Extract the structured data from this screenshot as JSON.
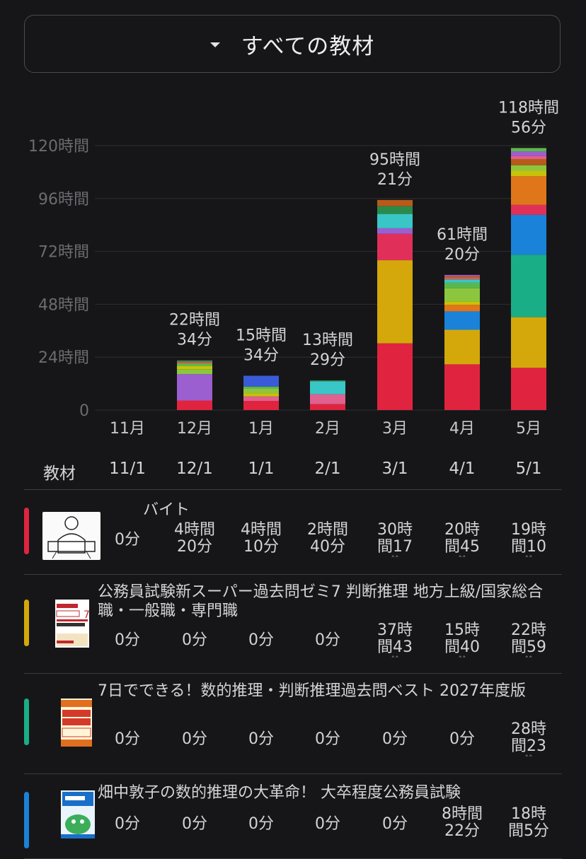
{
  "selector": {
    "label": "すべての教材"
  },
  "chart_data": {
    "type": "bar",
    "stacked": true,
    "categories": [
      "11月",
      "12月",
      "1月",
      "2月",
      "3月",
      "4月",
      "5月"
    ],
    "y_ticks": [
      "0",
      "24時間",
      "48時間",
      "72時間",
      "96時間",
      "120時間"
    ],
    "ylim": [
      0,
      120
    ],
    "grid": true,
    "totals_label": [
      [
        "",
        ""
      ],
      [
        "22時間",
        "34分"
      ],
      [
        "15時間",
        "34分"
      ],
      [
        "13時間",
        "29分"
      ],
      [
        "95時間",
        "21分"
      ],
      [
        "61時間",
        "20分"
      ],
      [
        "118時間",
        "56分"
      ]
    ],
    "totals_hours": [
      0,
      22.57,
      15.57,
      13.48,
      95.35,
      61.33,
      118.93
    ],
    "segments": [
      [],
      [
        {
          "h": 4.33,
          "c": "#e0243f"
        },
        {
          "h": 12.0,
          "c": "#9b5fd0"
        },
        {
          "h": 2.2,
          "c": "#8cc63f"
        },
        {
          "h": 1.5,
          "c": "#c8c20a"
        },
        {
          "h": 1.2,
          "c": "#5ab84a"
        },
        {
          "h": 0.8,
          "c": "#d65a5a"
        },
        {
          "h": 0.54,
          "c": "#2a8a4a"
        }
      ],
      [
        {
          "h": 4.17,
          "c": "#e0243f"
        },
        {
          "h": 2.0,
          "c": "#e06090"
        },
        {
          "h": 1.5,
          "c": "#c8c20a"
        },
        {
          "h": 2.2,
          "c": "#8cc63f"
        },
        {
          "h": 0.8,
          "c": "#5ab84a"
        },
        {
          "h": 4.9,
          "c": "#3a5ad8"
        }
      ],
      [
        {
          "h": 2.67,
          "c": "#e0243f"
        },
        {
          "h": 4.5,
          "c": "#e06090"
        },
        {
          "h": 5.9,
          "c": "#3ac6c6"
        },
        {
          "h": 0.41,
          "c": "#2a8a4a"
        }
      ],
      [
        {
          "h": 30.28,
          "c": "#e0243f"
        },
        {
          "h": 37.72,
          "c": "#d4a80a"
        },
        {
          "h": 12.0,
          "c": "#e0305a"
        },
        {
          "h": 2.5,
          "c": "#9b5fd0"
        },
        {
          "h": 6.5,
          "c": "#3ac6c6"
        },
        {
          "h": 3.5,
          "c": "#2a8a4a"
        },
        {
          "h": 2.85,
          "c": "#b85a1a"
        }
      ],
      [
        {
          "h": 20.75,
          "c": "#e0243f"
        },
        {
          "h": 15.67,
          "c": "#d4a80a"
        },
        {
          "h": 8.37,
          "c": "#1a82d8"
        },
        {
          "h": 3.0,
          "c": "#e0761a"
        },
        {
          "h": 1.5,
          "c": "#c8c20a"
        },
        {
          "h": 6.0,
          "c": "#8cc63f"
        },
        {
          "h": 2.5,
          "c": "#5ab84a"
        },
        {
          "h": 1.5,
          "c": "#3ac6c6"
        },
        {
          "h": 1.0,
          "c": "#d65a5a"
        },
        {
          "h": 0.54,
          "c": "#b85a1a"
        },
        {
          "h": 0.5,
          "c": "#9b5fd0"
        }
      ],
      [
        {
          "h": 19.17,
          "c": "#e0243f"
        },
        {
          "h": 22.98,
          "c": "#d4a80a"
        },
        {
          "h": 28.38,
          "c": "#1aae86"
        },
        {
          "h": 18.08,
          "c": "#1a82d8"
        },
        {
          "h": 4.5,
          "c": "#e0305a"
        },
        {
          "h": 13.0,
          "c": "#e0761a"
        },
        {
          "h": 2.5,
          "c": "#c8c20a"
        },
        {
          "h": 2.5,
          "c": "#8cc63f"
        },
        {
          "h": 2.8,
          "c": "#b85a1a"
        },
        {
          "h": 1.5,
          "c": "#e06090"
        },
        {
          "h": 2.0,
          "c": "#9b5fd0"
        },
        {
          "h": 1.52,
          "c": "#5ab84a"
        }
      ]
    ]
  },
  "table": {
    "header_label": "教材",
    "dates": [
      "11/1",
      "12/1",
      "1/1",
      "2/1",
      "3/1",
      "4/1",
      "5/1"
    ],
    "rows": [
      {
        "title": "バイト",
        "color": "#e0243f",
        "values": [
          [
            "0分"
          ],
          [
            "4時間",
            "20分"
          ],
          [
            "4時間",
            "10分"
          ],
          [
            "2時間",
            "40分"
          ],
          [
            "30時",
            "間17"
          ],
          [
            "20時",
            "間45"
          ],
          [
            "19時",
            "間10"
          ]
        ],
        "more": [
          false,
          false,
          false,
          false,
          true,
          true,
          true
        ]
      },
      {
        "title": "公務員試験新スーパー過去問ゼミ7 判断推理 地方上級/国家総合職・一般職・専門職",
        "color": "#d4a80a",
        "values": [
          [
            "0分"
          ],
          [
            "0分"
          ],
          [
            "0分"
          ],
          [
            "0分"
          ],
          [
            "37時",
            "間43"
          ],
          [
            "15時",
            "間40"
          ],
          [
            "22時",
            "間59"
          ]
        ],
        "more": [
          false,
          false,
          false,
          false,
          true,
          true,
          true
        ]
      },
      {
        "title": "7日でできる！数的推理・判断推理過去問ベスト 2027年度版",
        "color": "#1aae86",
        "values": [
          [
            "0分"
          ],
          [
            "0分"
          ],
          [
            "0分"
          ],
          [
            "0分"
          ],
          [
            "0分"
          ],
          [
            "0分"
          ],
          [
            "28時",
            "間23"
          ]
        ],
        "more": [
          false,
          false,
          false,
          false,
          false,
          false,
          true
        ]
      },
      {
        "title": "畑中敦子の数的推理の大革命！ 大卒程度公務員試験",
        "color": "#1a82d8",
        "values": [
          [
            "0分"
          ],
          [
            "0分"
          ],
          [
            "0分"
          ],
          [
            "0分"
          ],
          [
            "0分"
          ],
          [
            "8時間",
            "22分"
          ],
          [
            "18時",
            "間5分"
          ]
        ],
        "more": [
          false,
          false,
          false,
          false,
          false,
          false,
          false
        ]
      }
    ]
  }
}
